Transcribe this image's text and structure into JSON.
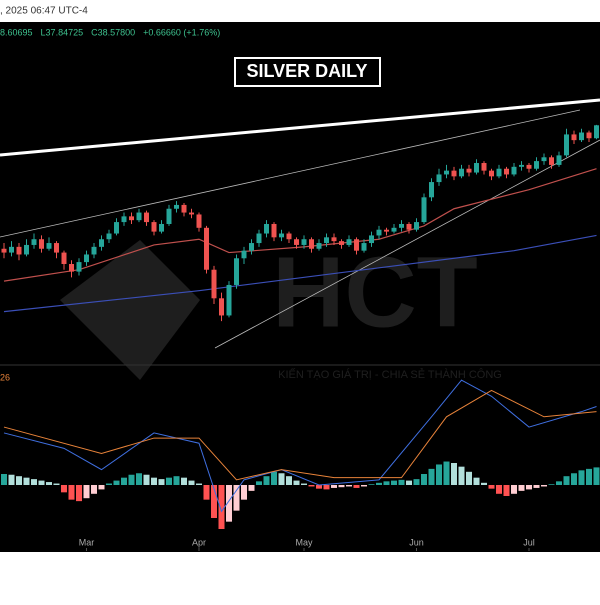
{
  "chart_data": {
    "type": "candlestick",
    "title": "SILVER DAILY",
    "time": ", 2025 06:47 UTC-4",
    "ohlc_labels": [
      "8.60695",
      "L37.84725",
      "C38.57800",
      "+0.66660 (+1.76%)"
    ],
    "macd_param": "26",
    "watermark": "HCT",
    "watermark_tagline": "KIẾN TẠO GIÁ TRỊ - CHIA SẺ THÀNH CÔNG",
    "up_color": "#26a69a",
    "down_color": "#ef5350",
    "ylim": [
      26,
      44
    ],
    "xticks": [
      {
        "value": 11,
        "label": "Mar"
      },
      {
        "value": 26,
        "label": "Apr"
      },
      {
        "value": 40,
        "label": "May"
      },
      {
        "value": 55,
        "label": "Jun"
      },
      {
        "value": 70,
        "label": "Jul"
      }
    ],
    "candles": [
      [
        32.1,
        32.4,
        31.6,
        31.9
      ],
      [
        31.9,
        32.5,
        31.7,
        32.2
      ],
      [
        32.2,
        32.4,
        31.5,
        31.8
      ],
      [
        31.8,
        32.6,
        31.7,
        32.3
      ],
      [
        32.3,
        32.9,
        32.1,
        32.6
      ],
      [
        32.6,
        32.8,
        31.9,
        32.1
      ],
      [
        32.1,
        32.7,
        32.0,
        32.4
      ],
      [
        32.4,
        32.5,
        31.6,
        31.9
      ],
      [
        31.9,
        32.0,
        31.0,
        31.3
      ],
      [
        31.3,
        31.5,
        30.6,
        30.9
      ],
      [
        30.9,
        31.6,
        30.7,
        31.4
      ],
      [
        31.4,
        32.0,
        31.2,
        31.8
      ],
      [
        31.8,
        32.4,
        31.6,
        32.2
      ],
      [
        32.2,
        32.8,
        32.0,
        32.6
      ],
      [
        32.6,
        33.1,
        32.4,
        32.9
      ],
      [
        32.9,
        33.7,
        32.8,
        33.5
      ],
      [
        33.5,
        34.0,
        33.3,
        33.8
      ],
      [
        33.8,
        34.0,
        33.4,
        33.6
      ],
      [
        33.6,
        34.2,
        33.5,
        34.0
      ],
      [
        34.0,
        34.1,
        33.3,
        33.5
      ],
      [
        33.5,
        33.6,
        32.8,
        33.0
      ],
      [
        33.0,
        33.6,
        32.9,
        33.4
      ],
      [
        33.4,
        34.4,
        33.3,
        34.2
      ],
      [
        34.2,
        34.6,
        34.0,
        34.4
      ],
      [
        34.4,
        34.5,
        33.8,
        34.0
      ],
      [
        34.0,
        34.2,
        33.7,
        33.9
      ],
      [
        33.9,
        34.0,
        33.0,
        33.2
      ],
      [
        33.2,
        33.3,
        30.8,
        31.0
      ],
      [
        31.0,
        31.2,
        29.2,
        29.5
      ],
      [
        29.5,
        29.8,
        28.3,
        28.6
      ],
      [
        28.6,
        30.4,
        28.5,
        30.2
      ],
      [
        30.2,
        31.8,
        30.0,
        31.6
      ],
      [
        31.6,
        32.2,
        31.3,
        32.0
      ],
      [
        32.0,
        32.6,
        31.8,
        32.4
      ],
      [
        32.4,
        33.1,
        32.2,
        32.9
      ],
      [
        32.9,
        33.6,
        32.7,
        33.4
      ],
      [
        33.4,
        33.5,
        32.5,
        32.7
      ],
      [
        32.7,
        33.1,
        32.5,
        32.9
      ],
      [
        32.9,
        33.0,
        32.4,
        32.6
      ],
      [
        32.6,
        32.7,
        32.1,
        32.3
      ],
      [
        32.3,
        32.8,
        32.1,
        32.6
      ],
      [
        32.6,
        32.7,
        31.9,
        32.1
      ],
      [
        32.1,
        32.6,
        32.0,
        32.4
      ],
      [
        32.4,
        32.9,
        32.2,
        32.7
      ],
      [
        32.7,
        32.9,
        32.3,
        32.5
      ],
      [
        32.5,
        32.6,
        32.1,
        32.3
      ],
      [
        32.3,
        32.8,
        32.2,
        32.6
      ],
      [
        32.6,
        32.7,
        31.8,
        32.0
      ],
      [
        32.0,
        32.6,
        31.9,
        32.4
      ],
      [
        32.4,
        33.0,
        32.2,
        32.8
      ],
      [
        32.8,
        33.3,
        32.6,
        33.1
      ],
      [
        33.1,
        33.2,
        32.8,
        33.0
      ],
      [
        33.0,
        33.4,
        32.9,
        33.2
      ],
      [
        33.2,
        33.6,
        33.0,
        33.4
      ],
      [
        33.4,
        33.5,
        32.9,
        33.1
      ],
      [
        33.1,
        33.7,
        33.0,
        33.5
      ],
      [
        33.5,
        35.0,
        33.4,
        34.8
      ],
      [
        34.8,
        35.8,
        34.6,
        35.6
      ],
      [
        35.6,
        36.3,
        35.4,
        36.0
      ],
      [
        36.0,
        36.5,
        35.8,
        36.2
      ],
      [
        36.2,
        36.4,
        35.7,
        35.9
      ],
      [
        35.9,
        36.5,
        35.8,
        36.3
      ],
      [
        36.3,
        36.5,
        35.9,
        36.1
      ],
      [
        36.1,
        36.8,
        36.0,
        36.6
      ],
      [
        36.6,
        36.7,
        36.0,
        36.2
      ],
      [
        36.2,
        36.3,
        35.7,
        35.9
      ],
      [
        35.9,
        36.5,
        35.8,
        36.3
      ],
      [
        36.3,
        36.4,
        35.8,
        36.0
      ],
      [
        36.0,
        36.6,
        35.9,
        36.4
      ],
      [
        36.4,
        36.7,
        36.2,
        36.5
      ],
      [
        36.5,
        36.6,
        36.1,
        36.3
      ],
      [
        36.3,
        36.9,
        36.2,
        36.7
      ],
      [
        36.7,
        37.1,
        36.5,
        36.9
      ],
      [
        36.9,
        37.0,
        36.3,
        36.5
      ],
      [
        36.5,
        37.2,
        36.4,
        37.0
      ],
      [
        37.0,
        38.4,
        36.9,
        38.1
      ],
      [
        38.1,
        38.3,
        37.6,
        37.8
      ],
      [
        37.8,
        38.4,
        37.7,
        38.2
      ],
      [
        38.2,
        38.3,
        37.7,
        37.9
      ],
      [
        37.9,
        38.6,
        37.85,
        38.58
      ]
    ],
    "averages": [
      {
        "color": "#c0504d",
        "x": [
          0,
          10,
          20,
          26,
          30,
          40,
          50,
          56,
          60,
          70,
          79
        ],
        "values": [
          30.4,
          31.0,
          32.3,
          32.6,
          31.9,
          32.2,
          32.6,
          33.3,
          34.2,
          35.2,
          36.3
        ]
      },
      {
        "color": "#3b4fb8",
        "x": [
          0,
          26,
          52,
          68,
          79
        ],
        "values": [
          28.8,
          29.9,
          31.2,
          32.0,
          32.8
        ]
      }
    ],
    "macd": {
      "ylim": [
        -0.75,
        1.5
      ],
      "histogram": [
        0.15,
        0.14,
        0.12,
        0.1,
        0.08,
        0.06,
        0.04,
        0.02,
        -0.1,
        -0.2,
        -0.22,
        -0.18,
        -0.12,
        -0.06,
        0.02,
        0.06,
        0.1,
        0.14,
        0.16,
        0.14,
        0.1,
        0.08,
        0.1,
        0.12,
        0.1,
        0.06,
        0.02,
        -0.2,
        -0.45,
        -0.6,
        -0.5,
        -0.35,
        -0.2,
        -0.08,
        0.05,
        0.12,
        0.18,
        0.16,
        0.12,
        0.06,
        0.02,
        -0.02,
        -0.05,
        -0.06,
        -0.04,
        -0.03,
        -0.02,
        -0.04,
        -0.02,
        0.01,
        0.03,
        0.05,
        0.06,
        0.07,
        0.06,
        0.08,
        0.15,
        0.22,
        0.28,
        0.32,
        0.3,
        0.25,
        0.18,
        0.1,
        0.03,
        -0.05,
        -0.12,
        -0.15,
        -0.12,
        -0.08,
        -0.06,
        -0.04,
        -0.02,
        0.01,
        0.05,
        0.12,
        0.16,
        0.2,
        0.22,
        0.24
      ],
      "lines": [
        {
          "color": "#3f6fe0",
          "x": [
            0,
            8,
            13,
            20,
            26,
            29,
            32,
            37,
            42,
            50,
            57,
            61,
            65,
            70,
            77,
            79
          ],
          "values": [
            0.71,
            0.5,
            0.21,
            0.71,
            0.57,
            -0.36,
            0.07,
            0.21,
            0,
            0.07,
            0.93,
            1.43,
            1.21,
            0.79,
            1.0,
            1.07
          ]
        },
        {
          "color": "#e8833a",
          "x": [
            0,
            13,
            20,
            26,
            31,
            37,
            44,
            53,
            59,
            65,
            72,
            79
          ],
          "values": [
            0.79,
            0.43,
            0.64,
            0.64,
            0.07,
            0.21,
            0.1,
            0.1,
            0.93,
            1.29,
            0.93,
            1.0
          ]
        }
      ]
    }
  }
}
